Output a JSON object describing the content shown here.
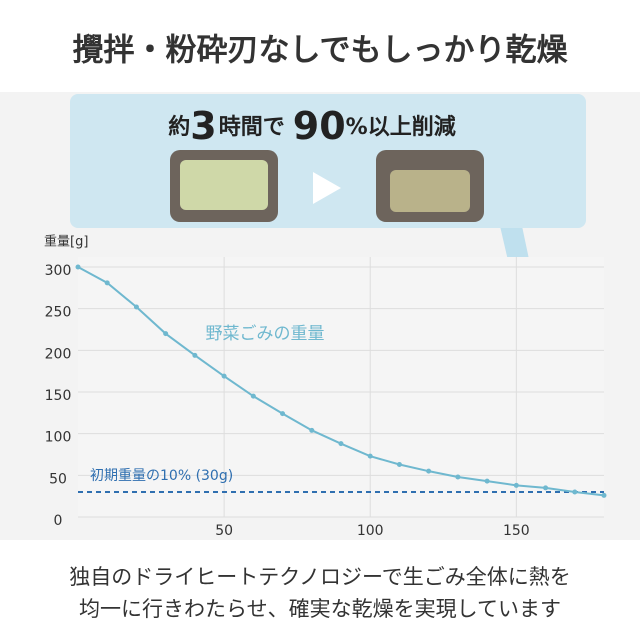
{
  "header": {
    "title": "攪拌・粉砕刃なしでもしっかり乾燥"
  },
  "callout": {
    "prefix": "約",
    "hours": "3",
    "mid": "時間で",
    "percent": "90",
    "suffix": "%以上削減"
  },
  "footer": {
    "lines": [
      "独自のドライヒートテクノロジーで生ごみ全体に熱を",
      "均一に行きわたらせ、確実な乾燥を実現しています"
    ]
  },
  "chart_data": {
    "type": "line",
    "y_label": "重量[g]",
    "x": [
      0,
      10,
      20,
      30,
      40,
      50,
      60,
      70,
      80,
      90,
      100,
      110,
      120,
      130,
      140,
      150,
      160,
      170,
      180
    ],
    "series": [
      {
        "name": "野菜ごみの重量",
        "color": "#6fb8cf",
        "values": [
          300,
          281,
          252,
          220,
          194,
          169,
          145,
          124,
          104,
          88,
          73,
          63,
          55,
          48,
          43,
          38,
          35,
          30,
          26
        ]
      }
    ],
    "reference": {
      "value": 30,
      "label": "初期重量の10% (30g)",
      "color": "#2f6fb0"
    },
    "xlim": [
      0,
      180
    ],
    "xticks": [
      50,
      100,
      150
    ],
    "ylim": [
      0,
      300
    ],
    "yticks": [
      0,
      50,
      100,
      150,
      200,
      250,
      300
    ],
    "grid": true
  }
}
